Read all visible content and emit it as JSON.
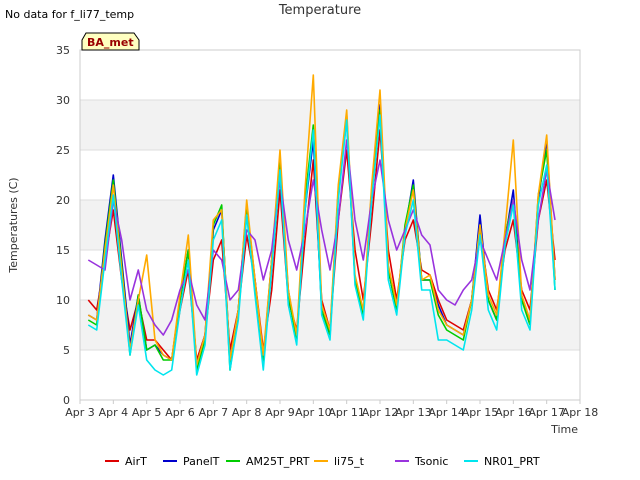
{
  "chart_data": {
    "type": "line",
    "title": "Temperature",
    "no_data_note": "No data for f_li77_temp",
    "site_badge": "BA_met",
    "xlabel": "Time",
    "ylabel": "Temperatures (C)",
    "ylim": [
      0,
      35
    ],
    "yticks": [
      0,
      5,
      10,
      15,
      20,
      25,
      30,
      35
    ],
    "xlim": [
      3,
      18
    ],
    "xticks": [
      3,
      4,
      5,
      6,
      7,
      8,
      9,
      10,
      11,
      12,
      13,
      14,
      15,
      16,
      17,
      18
    ],
    "xtick_labels": [
      "Apr 3",
      "Apr 4",
      "Apr 5",
      "Apr 6",
      "Apr 7",
      "Apr 8",
      "Apr 9",
      "Apr 10",
      "Apr 11",
      "Apr 12",
      "Apr 13",
      "Apr 14",
      "Apr 15",
      "Apr 16",
      "Apr 17",
      "Apr 18"
    ],
    "x_unit": "day of April",
    "grid": "horizontal bands",
    "legend_position": "bottom",
    "series": [
      {
        "name": "AirT",
        "color": "#dd0000",
        "x": [
          3.25,
          3.5,
          3.75,
          4.0,
          4.25,
          4.5,
          4.75,
          5.0,
          5.25,
          5.5,
          5.75,
          6.0,
          6.25,
          6.5,
          6.75,
          7.0,
          7.25,
          7.5,
          7.75,
          8.0,
          8.25,
          8.5,
          8.75,
          9.0,
          9.25,
          9.5,
          9.75,
          10.0,
          10.25,
          10.5,
          10.75,
          11.0,
          11.25,
          11.5,
          11.75,
          12.0,
          12.25,
          12.5,
          12.75,
          13.0,
          13.25,
          13.5,
          13.75,
          14.0,
          14.25,
          14.5,
          14.75,
          15.0,
          15.25,
          15.5,
          15.75,
          16.0,
          16.25,
          16.5,
          16.75,
          17.0,
          17.25
        ],
        "y": [
          10.0,
          9.0,
          14.0,
          19.0,
          12.0,
          7.0,
          10.0,
          6.0,
          6.0,
          5.0,
          4.0,
          9.0,
          13.0,
          4.0,
          6.5,
          14.0,
          16.0,
          5.0,
          9.0,
          16.5,
          12.0,
          5.0,
          11.0,
          21.0,
          10.0,
          7.0,
          16.0,
          24.0,
          10.0,
          7.0,
          18.0,
          25.0,
          15.0,
          10.0,
          18.0,
          27.0,
          15.0,
          10.0,
          16.0,
          18.0,
          13.0,
          12.5,
          10.0,
          8.0,
          7.5,
          7.0,
          10.0,
          17.0,
          11.0,
          9.0,
          15.0,
          18.0,
          11.0,
          9.0,
          18.0,
          22.0,
          14.0
        ]
      },
      {
        "name": "PanelT",
        "color": "#0000cc",
        "x": [
          3.25,
          3.5,
          3.75,
          4.0,
          4.25,
          4.5,
          4.75,
          5.0,
          5.25,
          5.5,
          5.75,
          6.0,
          6.25,
          6.5,
          6.75,
          7.0,
          7.25,
          7.5,
          7.75,
          8.0,
          8.25,
          8.5,
          8.75,
          9.0,
          9.25,
          9.5,
          9.75,
          10.0,
          10.25,
          10.5,
          10.75,
          11.0,
          11.25,
          11.5,
          11.75,
          12.0,
          12.25,
          12.5,
          12.75,
          13.0,
          13.25,
          13.5,
          13.75,
          14.0,
          14.25,
          14.5,
          14.75,
          15.0,
          15.25,
          15.5,
          15.75,
          16.0,
          16.25,
          16.5,
          16.75,
          17.0,
          17.25
        ],
        "y": [
          8.5,
          8.0,
          16.0,
          22.5,
          14.0,
          5.5,
          10.5,
          5.0,
          5.5,
          4.5,
          4.0,
          10.0,
          15.0,
          3.5,
          6.5,
          17.0,
          19.0,
          4.0,
          9.0,
          19.5,
          12.0,
          4.0,
          14.0,
          22.5,
          11.0,
          6.0,
          19.0,
          26.0,
          9.0,
          6.5,
          21.0,
          28.0,
          12.0,
          8.5,
          21.0,
          29.5,
          13.0,
          9.0,
          17.0,
          22.0,
          12.0,
          12.0,
          9.5,
          7.5,
          7.0,
          6.5,
          10.0,
          18.5,
          10.0,
          8.0,
          16.0,
          21.0,
          10.0,
          8.0,
          20.0,
          26.0,
          12.0
        ]
      },
      {
        "name": "AM25T_PRT",
        "color": "#00cc00",
        "x": [
          3.25,
          3.5,
          3.75,
          4.0,
          4.25,
          4.5,
          4.75,
          5.0,
          5.25,
          5.5,
          5.75,
          6.0,
          6.25,
          6.5,
          6.75,
          7.0,
          7.25,
          7.5,
          7.75,
          8.0,
          8.25,
          8.5,
          8.75,
          9.0,
          9.25,
          9.5,
          9.75,
          10.0,
          10.25,
          10.5,
          10.75,
          11.0,
          11.25,
          11.5,
          11.75,
          12.0,
          12.25,
          12.5,
          12.75,
          13.0,
          13.25,
          13.5,
          13.75,
          14.0,
          14.25,
          14.5,
          14.75,
          15.0,
          15.25,
          15.5,
          15.75,
          16.0,
          16.25,
          16.5,
          16.75,
          17.0,
          17.25
        ],
        "y": [
          8.0,
          7.5,
          15.5,
          22.0,
          13.5,
          4.5,
          10.5,
          5.0,
          5.5,
          4.0,
          4.0,
          10.0,
          15.0,
          3.0,
          6.0,
          17.5,
          19.5,
          3.0,
          9.0,
          19.5,
          11.5,
          3.5,
          14.0,
          24.0,
          10.5,
          6.0,
          20.0,
          27.5,
          9.0,
          6.5,
          21.0,
          28.5,
          12.0,
          8.5,
          21.0,
          29.0,
          13.0,
          9.0,
          17.5,
          21.5,
          12.0,
          12.0,
          8.5,
          7.0,
          6.5,
          6.0,
          10.0,
          17.5,
          10.0,
          8.0,
          16.5,
          20.0,
          10.0,
          7.5,
          20.5,
          25.0,
          11.0
        ]
      },
      {
        "name": "li75_t",
        "color": "#ffaa00",
        "x": [
          3.25,
          3.5,
          3.75,
          4.0,
          4.25,
          4.5,
          4.75,
          5.0,
          5.25,
          5.5,
          5.75,
          6.0,
          6.25,
          6.5,
          6.75,
          7.0,
          7.25,
          7.5,
          7.75,
          8.0,
          8.25,
          8.5,
          8.75,
          9.0,
          9.25,
          9.5,
          9.75,
          10.0,
          10.25,
          10.5,
          10.75,
          11.0,
          11.25,
          11.5,
          11.75,
          12.0,
          12.25,
          12.5,
          12.75,
          13.0,
          13.25,
          13.5,
          13.75,
          14.0,
          14.25,
          14.5,
          14.75,
          15.0,
          15.25,
          15.5,
          15.75,
          16.0,
          16.25,
          16.5,
          16.75,
          17.0,
          17.25
        ],
        "y": [
          8.5,
          8.0,
          15.0,
          21.5,
          13.0,
          5.0,
          10.0,
          14.5,
          6.0,
          4.5,
          4.0,
          10.5,
          16.5,
          3.5,
          6.5,
          18.0,
          19.0,
          4.0,
          9.0,
          20.0,
          12.0,
          4.5,
          14.0,
          25.0,
          11.0,
          6.5,
          21.0,
          32.5,
          9.5,
          7.0,
          21.5,
          29.0,
          12.5,
          9.0,
          21.5,
          31.0,
          13.5,
          9.5,
          17.0,
          21.0,
          12.0,
          12.5,
          9.0,
          7.5,
          7.0,
          6.5,
          10.0,
          17.5,
          10.5,
          8.5,
          17.0,
          26.0,
          10.5,
          8.0,
          20.5,
          26.5,
          12.0
        ]
      },
      {
        "name": "Tsonic",
        "color": "#9933dd",
        "x": [
          3.25,
          3.5,
          3.75,
          4.0,
          4.25,
          4.5,
          4.75,
          5.0,
          5.25,
          5.5,
          5.75,
          6.0,
          6.25,
          6.5,
          6.75,
          7.0,
          7.25,
          7.5,
          7.75,
          8.0,
          8.25,
          8.5,
          8.75,
          9.0,
          9.25,
          9.5,
          9.75,
          10.0,
          10.25,
          10.5,
          10.75,
          11.0,
          11.25,
          11.5,
          11.75,
          12.0,
          12.25,
          12.5,
          12.75,
          13.0,
          13.25,
          13.5,
          13.75,
          14.0,
          14.25,
          14.5,
          14.75,
          15.0,
          15.25,
          15.5,
          15.75,
          16.0,
          16.25,
          16.5,
          16.75,
          17.0,
          17.25
        ],
        "y": [
          14.0,
          13.5,
          13.0,
          20.0,
          16.0,
          10.0,
          13.0,
          9.0,
          7.5,
          6.5,
          8.0,
          11.0,
          13.0,
          9.5,
          8.0,
          15.0,
          14.0,
          10.0,
          11.0,
          17.0,
          16.0,
          12.0,
          15.0,
          22.0,
          16.0,
          13.0,
          17.0,
          22.0,
          17.0,
          13.0,
          18.0,
          26.0,
          18.0,
          14.0,
          20.0,
          24.0,
          18.0,
          15.0,
          17.0,
          19.0,
          16.5,
          15.5,
          11.0,
          10.0,
          9.5,
          11.0,
          12.0,
          16.0,
          14.0,
          12.0,
          16.0,
          20.0,
          14.0,
          11.0,
          18.0,
          23.0,
          18.0
        ]
      },
      {
        "name": "NR01_PRT",
        "color": "#00e5ee",
        "x": [
          3.25,
          3.5,
          3.75,
          4.0,
          4.25,
          4.5,
          4.75,
          5.0,
          5.25,
          5.5,
          5.75,
          6.0,
          6.25,
          6.5,
          6.75,
          7.0,
          7.25,
          7.5,
          7.75,
          8.0,
          8.25,
          8.5,
          8.75,
          9.0,
          9.25,
          9.5,
          9.75,
          10.0,
          10.25,
          10.5,
          10.75,
          11.0,
          11.25,
          11.5,
          11.75,
          12.0,
          12.25,
          12.5,
          12.75,
          13.0,
          13.25,
          13.5,
          13.75,
          14.0,
          14.25,
          14.5,
          14.75,
          15.0,
          15.25,
          15.5,
          15.75,
          16.0,
          16.25,
          16.5,
          16.75,
          17.0,
          17.25
        ],
        "y": [
          7.5,
          7.0,
          14.0,
          20.5,
          12.0,
          4.5,
          9.5,
          4.0,
          3.0,
          2.5,
          3.0,
          9.0,
          14.0,
          2.5,
          5.5,
          16.0,
          18.0,
          3.0,
          8.0,
          18.5,
          10.5,
          3.0,
          13.0,
          23.0,
          9.5,
          5.5,
          19.0,
          27.0,
          8.5,
          6.0,
          20.0,
          28.0,
          11.5,
          8.0,
          20.0,
          28.5,
          12.0,
          8.5,
          16.5,
          20.0,
          11.0,
          11.0,
          6.0,
          6.0,
          5.5,
          5.0,
          9.0,
          16.5,
          9.0,
          7.0,
          15.5,
          19.5,
          9.0,
          7.0,
          19.5,
          23.5,
          11.0
        ]
      }
    ]
  }
}
